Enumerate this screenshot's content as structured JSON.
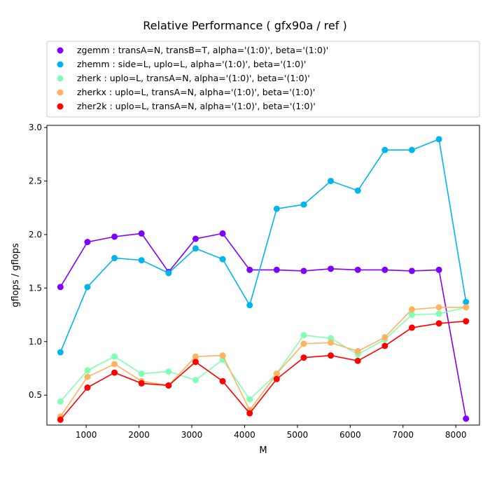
{
  "chart_data": {
    "type": "line",
    "title": "Relative Performance ( gfx90a /  ref )",
    "xlabel": "M",
    "ylabel": "gflops / gflops",
    "xlim": [
      256,
      8448
    ],
    "ylim": [
      0.22,
      3.02
    ],
    "x_ticks": [
      1000,
      2000,
      3000,
      4000,
      5000,
      6000,
      7000,
      8000
    ],
    "y_ticks": [
      0.5,
      1.0,
      1.5,
      2.0,
      2.5,
      3.0
    ],
    "x_tick_labels": [
      "1000",
      "2000",
      "3000",
      "4000",
      "5000",
      "6000",
      "7000",
      "8000"
    ],
    "y_tick_labels": [
      "0.5",
      "1.0",
      "1.5",
      "2.0",
      "2.5",
      "3.0"
    ],
    "grid": false,
    "legend_position": "top",
    "x": [
      512,
      1024,
      1536,
      2048,
      2560,
      3072,
      3584,
      4096,
      4608,
      5120,
      5632,
      6144,
      6656,
      7168,
      7680,
      8192
    ],
    "series": [
      {
        "name": "zgemm :  transA=N, transB=T, alpha='(1:0)', beta='(1:0)'",
        "color": "#8000ff",
        "values": [
          1.51,
          1.93,
          1.98,
          2.01,
          1.65,
          1.96,
          2.01,
          1.67,
          1.67,
          1.66,
          1.68,
          1.67,
          1.67,
          1.66,
          1.67,
          0.28
        ]
      },
      {
        "name": "zhemm :  side=L, uplo=L, alpha='(1:0)', beta='(1:0)'",
        "color": "#00b5eb",
        "values": [
          0.9,
          1.51,
          1.78,
          1.76,
          1.64,
          1.87,
          1.77,
          1.34,
          2.24,
          2.28,
          2.5,
          2.41,
          2.79,
          2.79,
          2.89,
          1.37
        ]
      },
      {
        "name": "zherk :  uplo=L, transA=N, alpha='(1:0)', beta='(1:0)'",
        "color": "#80ffb4",
        "values": [
          0.44,
          0.73,
          0.86,
          0.7,
          0.72,
          0.64,
          0.83,
          0.46,
          0.7,
          1.06,
          1.03,
          0.88,
          1.02,
          1.25,
          1.26,
          1.32
        ]
      },
      {
        "name": "zherkx :  uplo=L, transA=N, alpha='(1:0)', beta='(1:0)'",
        "color": "#ffb360",
        "values": [
          0.3,
          0.67,
          0.79,
          0.63,
          0.59,
          0.86,
          0.87,
          0.36,
          0.7,
          0.98,
          0.99,
          0.91,
          1.04,
          1.3,
          1.32,
          1.32
        ]
      },
      {
        "name": "zher2k :  uplo=L, transA=N, alpha='(1:0)', beta='(1:0)'",
        "color": "#ff0000",
        "values": [
          0.27,
          0.57,
          0.71,
          0.61,
          0.59,
          0.81,
          0.63,
          0.33,
          0.65,
          0.85,
          0.87,
          0.82,
          0.96,
          1.13,
          1.17,
          1.19
        ]
      }
    ]
  }
}
